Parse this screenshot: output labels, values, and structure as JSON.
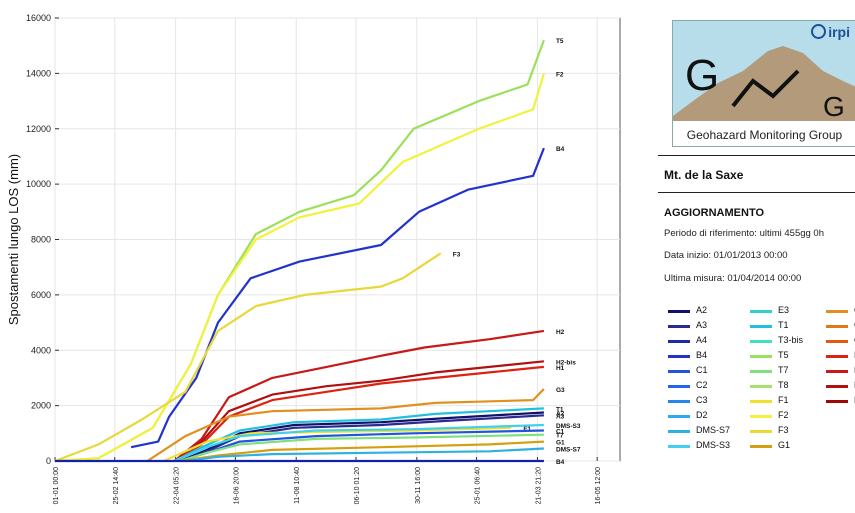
{
  "chart_data": {
    "type": "line",
    "ylabel": "Spostamenti lungo LOS (mm)",
    "xlabel": "",
    "ylim": [
      0,
      16000
    ],
    "yticks": [
      0,
      2000,
      4000,
      6000,
      8000,
      10000,
      12000,
      14000,
      16000
    ],
    "xlim": [
      0,
      520
    ],
    "xticks": [
      {
        "x": 0,
        "label": "01-01 00:00"
      },
      {
        "x": 55,
        "label": "25-02 14:40"
      },
      {
        "x": 111,
        "label": "22-04 05:20"
      },
      {
        "x": 166,
        "label": "16-06 20:00"
      },
      {
        "x": 222,
        "label": "11-08 10:40"
      },
      {
        "x": 277,
        "label": "06-10 01:20"
      },
      {
        "x": 333,
        "label": "30-11 16:00"
      },
      {
        "x": 388,
        "label": "25-01 06:40"
      },
      {
        "x": 444,
        "label": "21-03 21:20"
      },
      {
        "x": 499,
        "label": "16-05 12:00"
      }
    ],
    "grid": true,
    "series": [
      {
        "name": "T5",
        "color": "#9be05a",
        "label": "T5",
        "points": [
          [
            0,
            0
          ],
          [
            40,
            100
          ],
          [
            90,
            1200
          ],
          [
            125,
            3500
          ],
          [
            150,
            6000
          ],
          [
            185,
            8200
          ],
          [
            225,
            9000
          ],
          [
            275,
            9600
          ],
          [
            300,
            10500
          ],
          [
            330,
            12000
          ],
          [
            390,
            13000
          ],
          [
            435,
            13600
          ],
          [
            450,
            15200
          ]
        ]
      },
      {
        "name": "F2",
        "color": "#f2f23c",
        "label": "F2",
        "points": [
          [
            0,
            0
          ],
          [
            40,
            100
          ],
          [
            90,
            1200
          ],
          [
            125,
            3500
          ],
          [
            150,
            6000
          ],
          [
            185,
            8000
          ],
          [
            225,
            8800
          ],
          [
            280,
            9300
          ],
          [
            320,
            10800
          ],
          [
            390,
            12000
          ],
          [
            440,
            12700
          ],
          [
            450,
            14000
          ]
        ]
      },
      {
        "name": "B4",
        "color": "#2233cc",
        "label": "B4",
        "points": [
          [
            70,
            500
          ],
          [
            95,
            700
          ],
          [
            105,
            1600
          ],
          [
            130,
            3000
          ],
          [
            150,
            5000
          ],
          [
            180,
            6600
          ],
          [
            225,
            7200
          ],
          [
            300,
            7800
          ],
          [
            335,
            9000
          ],
          [
            380,
            9800
          ],
          [
            440,
            10300
          ],
          [
            450,
            11300
          ]
        ]
      },
      {
        "name": "F3",
        "color": "#e8d83a",
        "label": "F3",
        "points": [
          [
            0,
            0
          ],
          [
            40,
            600
          ],
          [
            80,
            1500
          ],
          [
            120,
            2500
          ],
          [
            150,
            4700
          ],
          [
            185,
            5600
          ],
          [
            230,
            6000
          ],
          [
            300,
            6300
          ],
          [
            320,
            6600
          ],
          [
            355,
            7500
          ]
        ]
      },
      {
        "name": "H2",
        "color": "#c81818",
        "label": "H2",
        "points": [
          [
            110,
            0
          ],
          [
            135,
            800
          ],
          [
            160,
            2300
          ],
          [
            200,
            3000
          ],
          [
            250,
            3400
          ],
          [
            300,
            3800
          ],
          [
            340,
            4100
          ],
          [
            400,
            4400
          ],
          [
            450,
            4700
          ]
        ]
      },
      {
        "name": "H2-bis",
        "color": "#b01010",
        "label": "H2-bis",
        "points": [
          [
            110,
            0
          ],
          [
            135,
            700
          ],
          [
            160,
            1800
          ],
          [
            200,
            2400
          ],
          [
            250,
            2700
          ],
          [
            300,
            2900
          ],
          [
            350,
            3200
          ],
          [
            400,
            3400
          ],
          [
            450,
            3600
          ]
        ]
      },
      {
        "name": "H1",
        "color": "#dd2211",
        "label": "H1",
        "points": [
          [
            110,
            0
          ],
          [
            135,
            600
          ],
          [
            160,
            1600
          ],
          [
            200,
            2200
          ],
          [
            250,
            2500
          ],
          [
            300,
            2800
          ],
          [
            350,
            3000
          ],
          [
            400,
            3200
          ],
          [
            450,
            3400
          ]
        ]
      },
      {
        "name": "G3",
        "color": "#e09020",
        "label": "G3",
        "points": [
          [
            85,
            0
          ],
          [
            120,
            900
          ],
          [
            160,
            1600
          ],
          [
            200,
            1800
          ],
          [
            300,
            1900
          ],
          [
            350,
            2100
          ],
          [
            440,
            2200
          ],
          [
            450,
            2600
          ]
        ]
      },
      {
        "name": "T1",
        "color": "#22c0e0",
        "label": "T1",
        "points": [
          [
            110,
            0
          ],
          [
            135,
            500
          ],
          [
            170,
            1100
          ],
          [
            220,
            1400
          ],
          [
            300,
            1500
          ],
          [
            350,
            1700
          ],
          [
            450,
            1900
          ]
        ]
      },
      {
        "name": "A2",
        "color": "#111166",
        "label": "A2",
        "points": [
          [
            115,
            0
          ],
          [
            140,
            400
          ],
          [
            170,
            1000
          ],
          [
            220,
            1300
          ],
          [
            300,
            1400
          ],
          [
            360,
            1550
          ],
          [
            450,
            1750
          ]
        ]
      },
      {
        "name": "A3",
        "color": "#2a2a90",
        "label": "A3",
        "points": [
          [
            115,
            0
          ],
          [
            140,
            350
          ],
          [
            170,
            900
          ],
          [
            220,
            1200
          ],
          [
            300,
            1300
          ],
          [
            360,
            1450
          ],
          [
            450,
            1650
          ]
        ]
      },
      {
        "name": "F1",
        "color": "#f0e030",
        "label": "F1",
        "points": [
          [
            100,
            0
          ],
          [
            140,
            700
          ],
          [
            180,
            1000
          ],
          [
            250,
            1050
          ],
          [
            330,
            1100
          ],
          [
            420,
            1200
          ]
        ]
      },
      {
        "name": "DMS-S3",
        "color": "#40d0f0",
        "label": "DMS-S3",
        "points": [
          [
            110,
            0
          ],
          [
            140,
            500
          ],
          [
            170,
            900
          ],
          [
            240,
            1100
          ],
          [
            330,
            1150
          ],
          [
            450,
            1300
          ]
        ]
      },
      {
        "name": "C1",
        "color": "#2255dd",
        "label": "C1",
        "points": [
          [
            115,
            0
          ],
          [
            140,
            300
          ],
          [
            170,
            700
          ],
          [
            240,
            900
          ],
          [
            330,
            1000
          ],
          [
            450,
            1100
          ]
        ]
      },
      {
        "name": "T7",
        "color": "#80e080",
        "label": "T7",
        "points": [
          [
            115,
            0
          ],
          [
            140,
            300
          ],
          [
            170,
            600
          ],
          [
            240,
            800
          ],
          [
            330,
            850
          ],
          [
            450,
            950
          ]
        ]
      },
      {
        "name": "G1",
        "color": "#d4a010",
        "label": "G1",
        "points": [
          [
            115,
            0
          ],
          [
            150,
            200
          ],
          [
            200,
            400
          ],
          [
            300,
            500
          ],
          [
            400,
            600
          ],
          [
            450,
            700
          ]
        ]
      },
      {
        "name": "DMS-S7",
        "color": "#30b0e0",
        "label": "DMS-S7",
        "points": [
          [
            120,
            0
          ],
          [
            150,
            150
          ],
          [
            200,
            250
          ],
          [
            300,
            300
          ],
          [
            400,
            350
          ],
          [
            450,
            450
          ]
        ]
      },
      {
        "name": "B4-bottom",
        "color": "#1122aa",
        "label": "B4",
        "points": [
          [
            0,
            0
          ],
          [
            450,
            0
          ]
        ]
      }
    ]
  },
  "panel": {
    "logo_text": "irpi",
    "logo_letter_big": "G",
    "logo_letter_small": "G",
    "logo_caption": "Geohazard Monitoring Group",
    "site_name": "Mt. de la Saxe",
    "update_heading": "AGGIORNAMENTO",
    "reference_period": "Periodo di riferimento: ultimi 455gg 0h",
    "start_date": "Data inizio: 01/01/2013 00:00",
    "last_measure": "Ultima misura:  01/04/2014 00:00",
    "legend_columns": [
      [
        {
          "label": "A2",
          "color": "#111166"
        },
        {
          "label": "A3",
          "color": "#2a2a90"
        },
        {
          "label": "A4",
          "color": "#1a2aaa"
        },
        {
          "label": "B4",
          "color": "#2233cc"
        },
        {
          "label": "C1",
          "color": "#2255dd"
        },
        {
          "label": "C2",
          "color": "#2266ee"
        },
        {
          "label": "C3",
          "color": "#2288ee"
        },
        {
          "label": "D2",
          "color": "#30a8f0"
        },
        {
          "label": "DMS-S7",
          "color": "#30b0e0"
        },
        {
          "label": "DMS-S3",
          "color": "#40d0f0"
        }
      ],
      [
        {
          "label": "E3",
          "color": "#30d0d0"
        },
        {
          "label": "T1",
          "color": "#22c0e0"
        },
        {
          "label": "T3-bis",
          "color": "#40e0c0"
        },
        {
          "label": "T5",
          "color": "#9be05a"
        },
        {
          "label": "T7",
          "color": "#80e080"
        },
        {
          "label": "T8",
          "color": "#a8e070"
        },
        {
          "label": "F1",
          "color": "#f0e030"
        },
        {
          "label": "F2",
          "color": "#f2f23c"
        },
        {
          "label": "F3",
          "color": "#e8d83a"
        },
        {
          "label": "G1",
          "color": "#d4a010"
        }
      ],
      [
        {
          "label": "G",
          "color": "#e09020"
        },
        {
          "label": "G",
          "color": "#e07818"
        },
        {
          "label": "G",
          "color": "#e05a10"
        },
        {
          "label": "H",
          "color": "#dd2211"
        },
        {
          "label": "H",
          "color": "#c81818"
        },
        {
          "label": "H",
          "color": "#b01010"
        },
        {
          "label": "H",
          "color": "#a00808"
        }
      ]
    ]
  }
}
